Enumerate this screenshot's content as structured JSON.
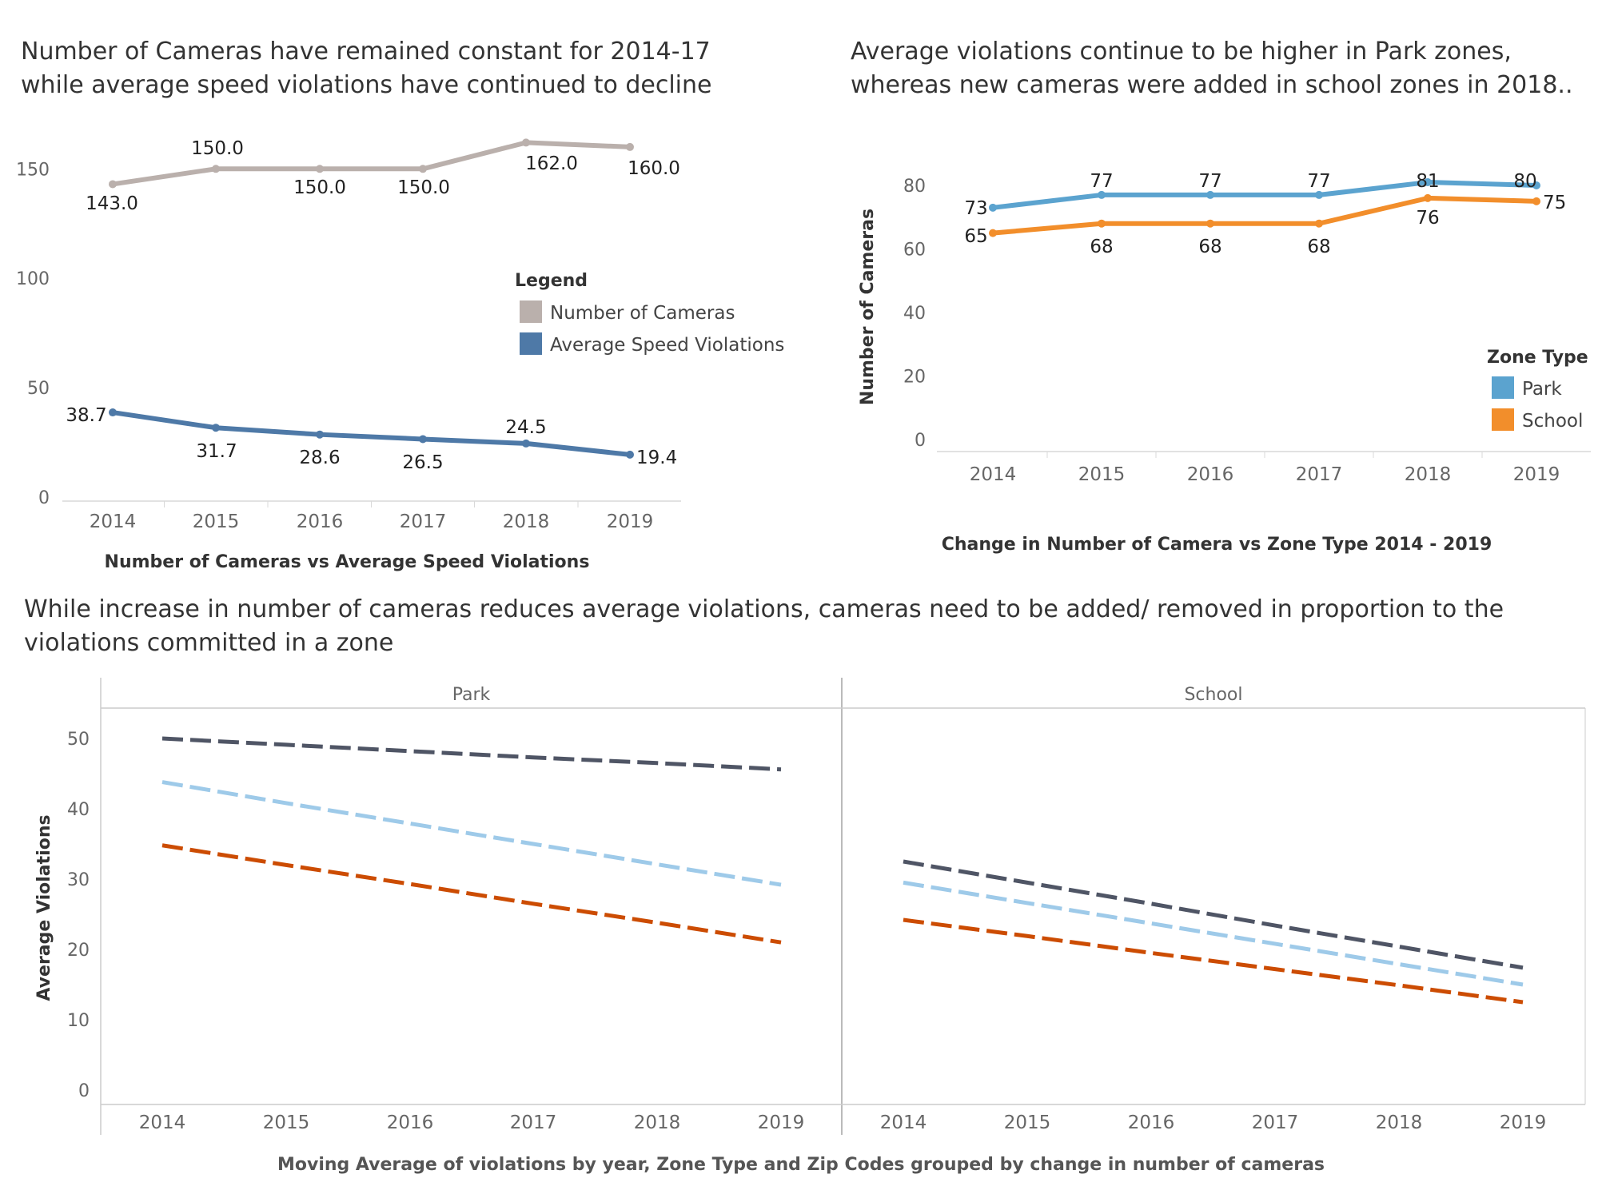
{
  "titles": {
    "chart1": "Number of Cameras have remained constant for 2014-17 while average speed violations have continued to decline",
    "chart2": "Average violations continue to be higher in Park zones, whereas new cameras were added in school zones in 2018..",
    "chart3": "While increase in number of cameras reduces average violations, cameras need to be added/ removed in proportion to the violations committed in a zone"
  },
  "chart_data": [
    {
      "type": "line",
      "title": "Number of Cameras have remained constant for 2014-17 while average speed violations have continued to decline",
      "xlabel": "Number of  Cameras vs Average Speed Violations",
      "ylabel": "",
      "categories": [
        "2014",
        "2015",
        "2016",
        "2017",
        "2018",
        "2019"
      ],
      "yticks": [
        "0",
        "50",
        "100",
        "150"
      ],
      "ylim": [
        0,
        168
      ],
      "legend": {
        "title": "Legend",
        "position": "right"
      },
      "series": [
        {
          "name": "Number of Cameras",
          "color": "#bab0ac",
          "values": [
            143.0,
            150.0,
            150.0,
            150.0,
            162.0,
            160.0
          ],
          "labels": [
            "143.0",
            "150.0",
            "150.0",
            "150.0",
            "162.0",
            "160.0"
          ]
        },
        {
          "name": "Average Speed Violations",
          "color": "#4e79a7",
          "values": [
            38.7,
            31.7,
            28.6,
            26.5,
            24.5,
            19.4
          ],
          "labels": [
            "38.7",
            "31.7",
            "28.6",
            "26.5",
            "24.5",
            "19.4"
          ]
        }
      ]
    },
    {
      "type": "line",
      "title": "Average violations continue to be higher in Park zones, whereas new cameras were added in school zones in 2018..",
      "xlabel": "Change in Number of Camera vs Zone Type 2014 - 2019",
      "ylabel": "Number of Cameras",
      "categories": [
        "2014",
        "2015",
        "2016",
        "2017",
        "2018",
        "2019"
      ],
      "yticks": [
        "0",
        "20",
        "40",
        "60",
        "80"
      ],
      "ylim": [
        0,
        82
      ],
      "legend": {
        "title": "Zone Type",
        "position": "right"
      },
      "series": [
        {
          "name": "Park",
          "color": "#5ba3cf",
          "values": [
            73,
            77,
            77,
            77,
            81,
            80
          ],
          "labels": [
            "73",
            "77",
            "77",
            "77",
            "81",
            "80"
          ]
        },
        {
          "name": "School",
          "color": "#f28e2b",
          "values": [
            65,
            68,
            68,
            68,
            76,
            75
          ],
          "labels": [
            "65",
            "68",
            "68",
            "68",
            "76",
            "75"
          ]
        }
      ]
    },
    {
      "type": "line",
      "title": "While increase in number of cameras reduces average violations, cameras need to be added/ removed in proportion to the violations committed in a zone",
      "xlabel": "Moving Average of violations by year, Zone Type and Zip Codes grouped by change in number of cameras",
      "ylabel": "Average Violations",
      "categories": [
        "2014",
        "2015",
        "2016",
        "2017",
        "2018",
        "2019"
      ],
      "yticks": [
        "0",
        "10",
        "20",
        "30",
        "40",
        "50"
      ],
      "ylim": [
        0,
        52
      ],
      "panels": [
        {
          "name": "Park",
          "series": [
            {
              "color": "#4f5565",
              "values": [
                50.0,
                49.1,
                48.2,
                47.3,
                46.5,
                45.6
              ]
            },
            {
              "color": "#9ecae9",
              "values": [
                43.8,
                40.8,
                37.9,
                35.0,
                32.1,
                29.2
              ]
            },
            {
              "color": "#cc4c02",
              "values": [
                34.8,
                32.0,
                29.3,
                26.5,
                23.8,
                21.0
              ]
            }
          ]
        },
        {
          "name": "School",
          "series": [
            {
              "color": "#4f5565",
              "values": [
                32.5,
                29.5,
                26.5,
                23.4,
                20.4,
                17.4
              ]
            },
            {
              "color": "#9ecae9",
              "values": [
                29.5,
                26.6,
                23.7,
                20.8,
                17.9,
                15.0
              ]
            },
            {
              "color": "#cc4c02",
              "values": [
                24.2,
                21.9,
                19.5,
                17.2,
                14.9,
                12.5
              ]
            }
          ]
        }
      ]
    }
  ]
}
